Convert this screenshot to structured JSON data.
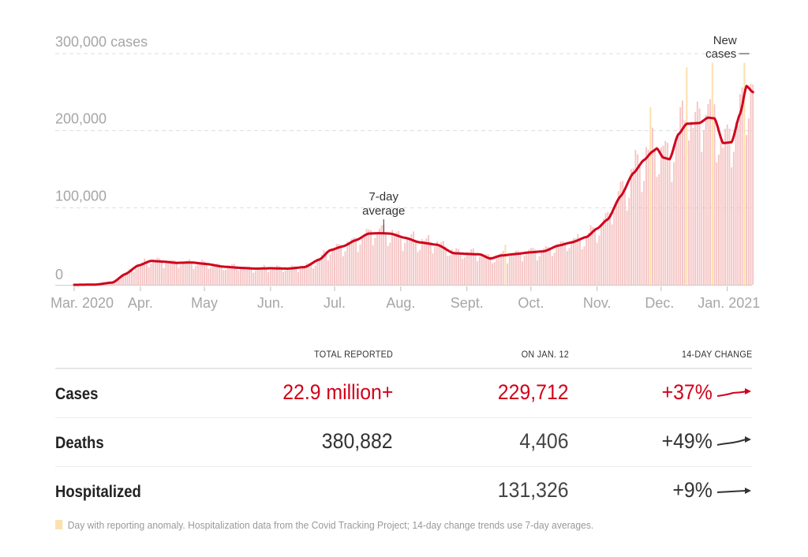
{
  "chart_data": {
    "type": "bar",
    "title": "",
    "ylabel": "cases",
    "ylim": [
      0,
      300000
    ],
    "grid": true,
    "start_date": "2020-03-01",
    "end_date": "2021-01-12",
    "y_ticks": [
      {
        "value": 0,
        "label": "0"
      },
      {
        "value": 100000,
        "label": "100,000"
      },
      {
        "value": 200000,
        "label": "200,000"
      },
      {
        "value": 300000,
        "label": "300,000 cases"
      }
    ],
    "x_ticks": [
      {
        "day": 0,
        "label": "Mar. 2020"
      },
      {
        "day": 31,
        "label": "Apr."
      },
      {
        "day": 61,
        "label": "May"
      },
      {
        "day": 92,
        "label": "Jun."
      },
      {
        "day": 122,
        "label": "Jul."
      },
      {
        "day": 153,
        "label": "Aug."
      },
      {
        "day": 184,
        "label": "Sept."
      },
      {
        "day": 214,
        "label": "Oct."
      },
      {
        "day": 245,
        "label": "Nov."
      },
      {
        "day": 275,
        "label": "Dec."
      },
      {
        "day": 306,
        "label": "Jan. 2021"
      }
    ],
    "series": [
      {
        "name": "7-day average",
        "kind": "line",
        "color": "#d0021b",
        "keypoints_day": [
          0,
          10,
          18,
          24,
          30,
          36,
          42,
          48,
          55,
          62,
          70,
          78,
          85,
          92,
          100,
          108,
          115,
          120,
          126,
          132,
          138,
          143,
          148,
          155,
          162,
          170,
          178,
          185,
          190,
          195,
          200,
          207,
          213,
          220,
          227,
          233,
          240,
          245,
          250,
          256,
          262,
          267,
          271,
          273,
          276,
          279,
          283,
          287,
          293,
          297,
          300,
          304,
          308,
          312,
          315,
          318
        ],
        "keypoints_value": [
          0,
          300,
          3000,
          14000,
          25000,
          31000,
          30000,
          28500,
          29000,
          27000,
          23500,
          22000,
          21000,
          21500,
          21000,
          23000,
          33000,
          45000,
          50000,
          58000,
          66500,
          67000,
          66500,
          61000,
          55000,
          52000,
          41000,
          40000,
          39500,
          34000,
          38000,
          40000,
          42000,
          43500,
          51000,
          55000,
          62000,
          73000,
          85000,
          115000,
          145000,
          162000,
          173000,
          177000,
          165000,
          163000,
          195000,
          209000,
          210000,
          217000,
          216000,
          184000,
          185000,
          222000,
          258000,
          250000
        ]
      },
      {
        "name": "New cases",
        "kind": "bar",
        "color": "#f4b8b8"
      },
      {
        "name": "Day with reporting anomaly",
        "kind": "bar",
        "color": "#fbd99b",
        "days": [
          202,
          270,
          287,
          299,
          314
        ]
      }
    ],
    "annotations": [
      {
        "text": [
          "7-day",
          "average"
        ],
        "day": 145
      },
      {
        "text": [
          "New",
          "cases"
        ],
        "day": 306
      }
    ]
  },
  "table": {
    "headers": [
      "TOTAL REPORTED",
      "ON JAN. 12",
      "14-DAY CHANGE"
    ],
    "rows": [
      {
        "label": "Cases",
        "total": "22.9 million+",
        "on_day": "229,712",
        "change": "+37%",
        "trend": "up-red"
      },
      {
        "label": "Deaths",
        "total": "380,882",
        "on_day": "4,406",
        "change": "+49%",
        "trend": "up-dark"
      },
      {
        "label": "Hospitalized",
        "total": "",
        "on_day": "131,326",
        "change": "+9%",
        "trend": "flat-dark"
      }
    ]
  },
  "footnote": "Day with reporting anomaly. Hospitalization data from the Covid Tracking Project; 14-day change trends use 7-day averages.",
  "colors": {
    "accent": "#d0021b",
    "bar": "#f4b8b8",
    "anomaly": "#fbd99b",
    "grid": "#dddddd",
    "axis_text": "#a6a6a6"
  }
}
